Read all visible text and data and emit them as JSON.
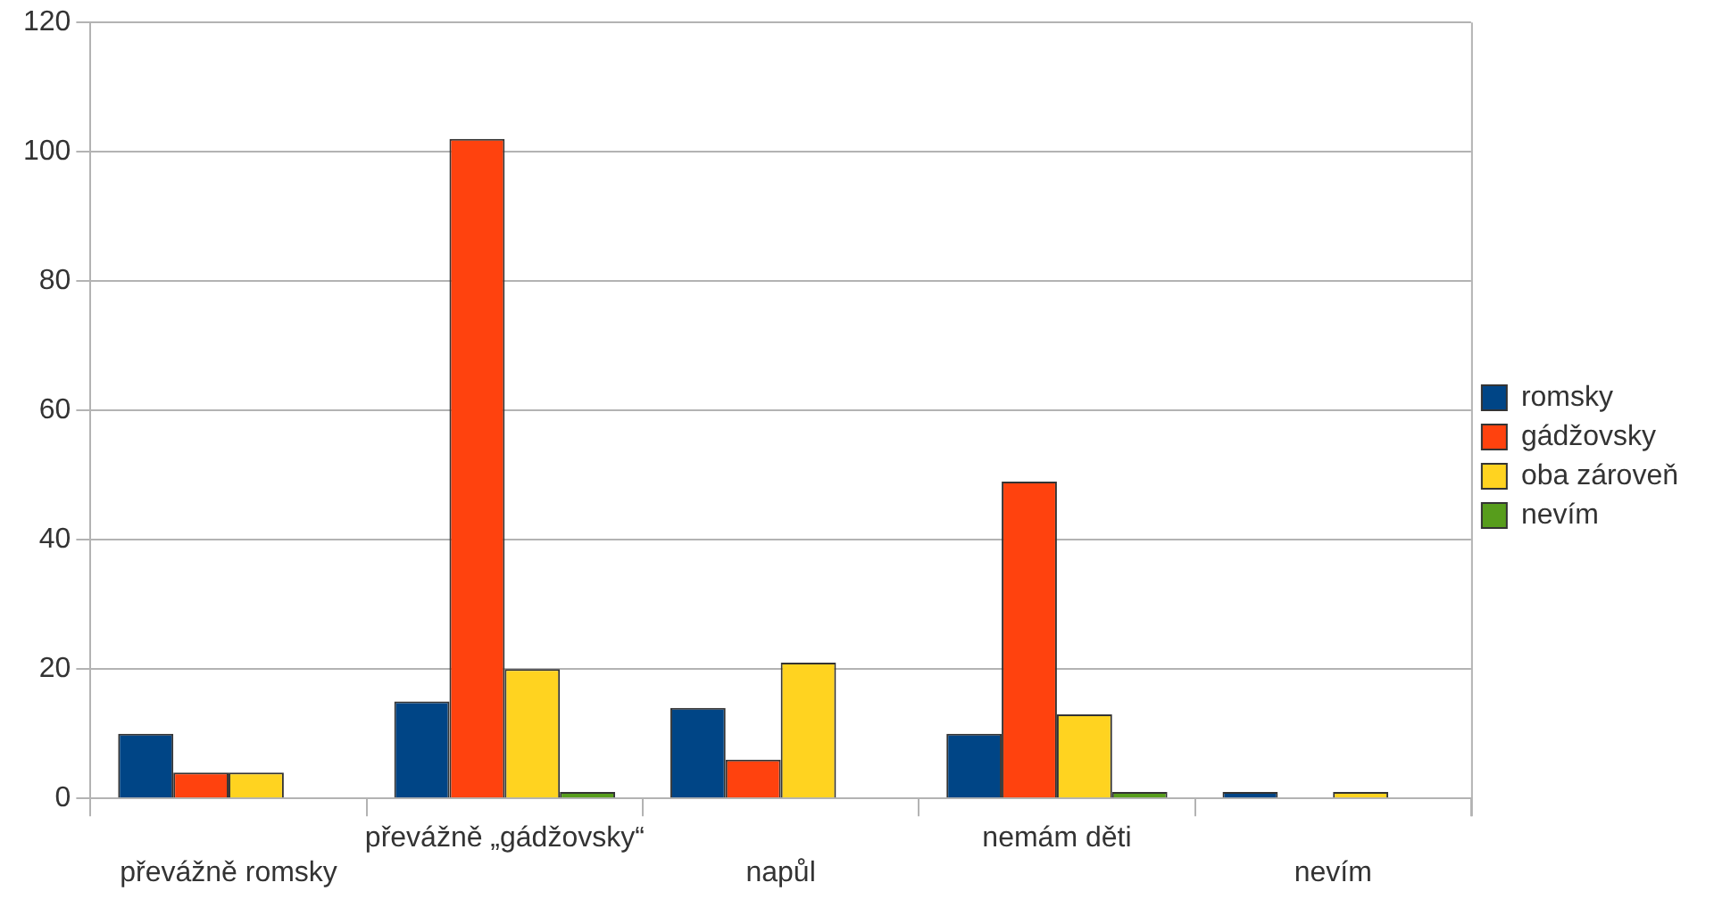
{
  "chart_data": {
    "type": "bar",
    "categories": [
      "převážně romsky",
      "převážně „gádžovsky“",
      "napůl",
      "nemám děti",
      "nevím"
    ],
    "series": [
      {
        "name": "romsky",
        "color": "#004586",
        "values": [
          10,
          15,
          14,
          10,
          1
        ]
      },
      {
        "name": "gádžovsky",
        "color": "#ff420e",
        "values": [
          4,
          102,
          6,
          49,
          null
        ]
      },
      {
        "name": "oba zároveň",
        "color": "#ffd320",
        "values": [
          4,
          20,
          21,
          13,
          1
        ]
      },
      {
        "name": "nevím",
        "color": "#579d1c",
        "values": [
          null,
          1,
          null,
          1,
          null
        ]
      }
    ],
    "ylim": [
      0,
      120
    ],
    "yticks": [
      0,
      20,
      40,
      60,
      80,
      100,
      120
    ],
    "grid": "y",
    "legend": "right"
  }
}
